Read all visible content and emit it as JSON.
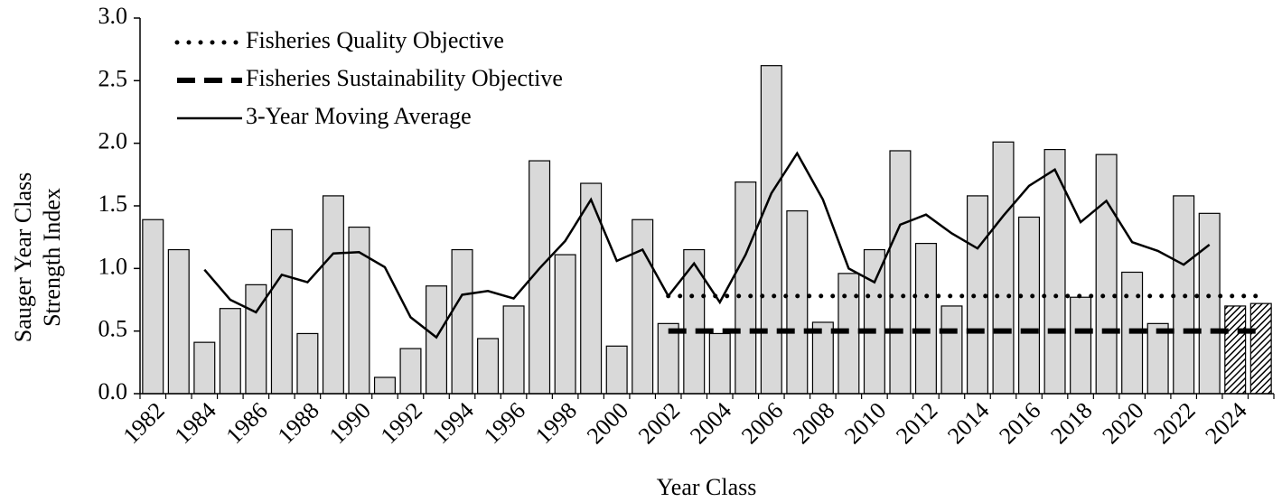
{
  "chart_data": {
    "type": "bar",
    "y_label": [
      "Sauger Year Class",
      "Strength Index"
    ],
    "x_label": "Year Class",
    "categories": [
      "1982",
      null,
      "1984",
      null,
      "1986",
      null,
      "1988",
      null,
      "1990",
      null,
      "1992",
      null,
      "1994",
      null,
      "1996",
      null,
      "1998",
      null,
      "2000",
      null,
      "2002",
      null,
      "2004",
      null,
      "2006",
      null,
      "2008",
      null,
      "2010",
      null,
      "2012",
      null,
      "2014",
      null,
      "2016",
      null,
      "2018",
      null,
      "2020",
      null,
      "2022",
      null,
      "2024",
      null
    ],
    "values": [
      1.39,
      1.15,
      0.41,
      0.68,
      0.87,
      1.31,
      0.48,
      1.58,
      1.33,
      0.13,
      0.36,
      0.86,
      1.15,
      0.44,
      0.7,
      1.86,
      1.11,
      1.68,
      0.38,
      1.39,
      0.56,
      1.15,
      0.48,
      1.69,
      2.62,
      1.46,
      0.57,
      0.96,
      1.15,
      1.94,
      1.2,
      0.7,
      1.58,
      2.01,
      1.41,
      1.95,
      0.77,
      1.91,
      0.97,
      0.56,
      1.58,
      1.44,
      0.7,
      0.72
    ],
    "bar_styles": [
      "solid",
      "solid",
      "solid",
      "solid",
      "solid",
      "solid",
      "solid",
      "solid",
      "solid",
      "solid",
      "solid",
      "solid",
      "solid",
      "solid",
      "solid",
      "solid",
      "solid",
      "solid",
      "solid",
      "solid",
      "solid",
      "solid",
      "solid",
      "solid",
      "solid",
      "solid",
      "solid",
      "solid",
      "solid",
      "solid",
      "solid",
      "solid",
      "solid",
      "solid",
      "solid",
      "solid",
      "solid",
      "solid",
      "solid",
      "solid",
      "solid",
      "solid",
      "hatched",
      "hatched"
    ],
    "color": "#d9d9d9",
    "series": [
      {
        "name": "Fisheries Quality Objective",
        "color": "#000000",
        "style": "dotted",
        "values": [
          null,
          null,
          null,
          null,
          null,
          null,
          null,
          null,
          null,
          null,
          null,
          null,
          null,
          null,
          null,
          null,
          null,
          null,
          null,
          null,
          0.78,
          0.78,
          0.78,
          0.78,
          0.78,
          0.78,
          0.78,
          0.78,
          0.78,
          0.78,
          0.78,
          0.78,
          0.78,
          0.78,
          0.78,
          0.78,
          0.78,
          0.78,
          0.78,
          0.78,
          0.78,
          0.78,
          0.78,
          0.78
        ]
      },
      {
        "name": "Fisheries Sustainability Objective",
        "color": "#000000",
        "style": "dashed",
        "values": [
          null,
          null,
          null,
          null,
          null,
          null,
          null,
          null,
          null,
          null,
          null,
          null,
          null,
          null,
          null,
          null,
          null,
          null,
          null,
          null,
          0.5,
          0.5,
          0.5,
          0.5,
          0.5,
          0.5,
          0.5,
          0.5,
          0.5,
          0.5,
          0.5,
          0.5,
          0.5,
          0.5,
          0.5,
          0.5,
          0.5,
          0.5,
          0.5,
          0.5,
          0.5,
          0.5,
          0.5,
          0.5
        ]
      },
      {
        "name": "3-Year Moving Average",
        "color": "#000000",
        "style": "solid",
        "values": [
          null,
          null,
          0.99,
          0.75,
          0.65,
          0.95,
          0.89,
          1.12,
          1.13,
          1.01,
          0.61,
          0.45,
          0.79,
          0.82,
          0.76,
          1.0,
          1.22,
          1.55,
          1.06,
          1.15,
          0.78,
          1.04,
          0.73,
          1.11,
          1.6,
          1.92,
          1.55,
          1.0,
          0.89,
          1.35,
          1.43,
          1.28,
          1.16,
          1.42,
          1.66,
          1.79,
          1.37,
          1.54,
          1.21,
          1.14,
          1.03,
          1.19,
          null,
          null
        ]
      }
    ],
    "ylim": [
      0,
      3
    ],
    "yticks": [
      {
        "value": 0,
        "label": "0.0"
      },
      {
        "value": 0.5,
        "label": "0.5"
      },
      {
        "value": 1,
        "label": "1.0"
      },
      {
        "value": 1.5,
        "label": "1.5"
      },
      {
        "value": 2,
        "label": "2.0"
      },
      {
        "value": 2.5,
        "label": "2.5"
      },
      {
        "value": 3,
        "label": "3.0"
      }
    ],
    "legend": "upper left"
  }
}
